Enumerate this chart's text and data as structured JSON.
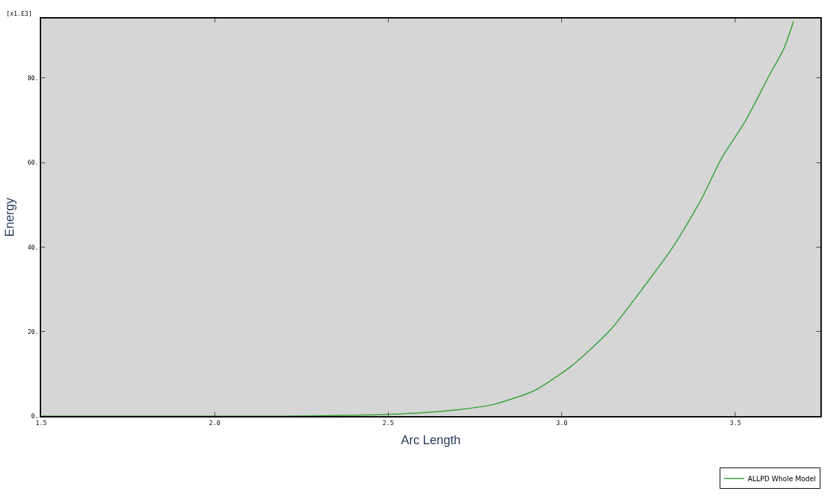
{
  "chart_data": {
    "type": "line",
    "xlabel": "Arc Length",
    "ylabel": "Energy",
    "annotations": [
      "[x1.E3]"
    ],
    "x": [
      1.5,
      1.8,
      2.0,
      2.2,
      2.3,
      2.4,
      2.5,
      2.6,
      2.7,
      2.8,
      2.92,
      3.03,
      3.14,
      3.24,
      3.32,
      3.4,
      3.46,
      3.53,
      3.6,
      3.64,
      3.668
    ],
    "series": [
      {
        "name": "ALLPD Whole Model",
        "color": "#2ca02c",
        "values": [
          0,
          0,
          0,
          0,
          0.1,
          0.2,
          0.4,
          0.8,
          1.5,
          2.7,
          6,
          12,
          20.4,
          31,
          40,
          51,
          61,
          70,
          81,
          87,
          93.5
        ]
      }
    ],
    "xlim": [
      1.5,
      3.745
    ],
    "ylim": [
      0,
      94.1
    ],
    "xticks": [
      {
        "value": 1.5,
        "label": "1.5"
      },
      {
        "value": 2.0,
        "label": "2.0"
      },
      {
        "value": 2.5,
        "label": "2.5"
      },
      {
        "value": 3.0,
        "label": "3.0"
      },
      {
        "value": 3.5,
        "label": "3.5"
      }
    ],
    "yticks": [
      {
        "value": 0,
        "label": "0."
      },
      {
        "value": 20,
        "label": "20."
      },
      {
        "value": 40,
        "label": "40."
      },
      {
        "value": 60,
        "label": "60."
      },
      {
        "value": 80,
        "label": "80."
      }
    ],
    "grid": false,
    "legend": "bottom right",
    "marker": "none",
    "line_style": "solid"
  }
}
